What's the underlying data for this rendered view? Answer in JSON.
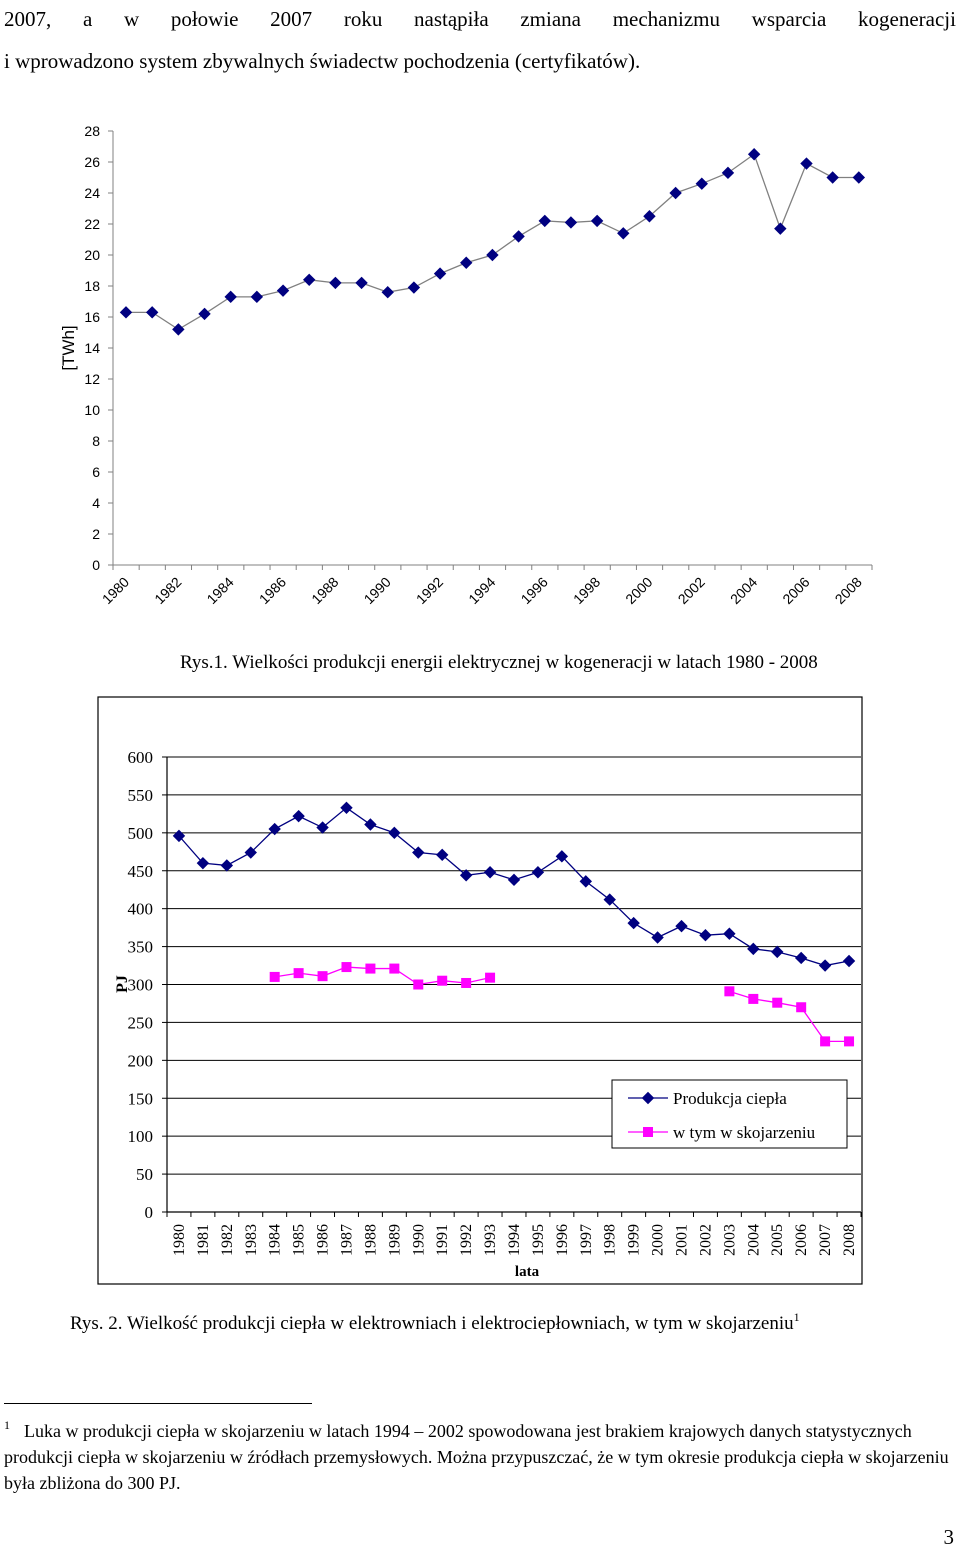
{
  "intro": {
    "line1_words": [
      "2007,",
      "a",
      "w",
      "połowie",
      "2007",
      "roku",
      "nastąpiła",
      "zmiana",
      "mechanizmu",
      "wsparcia",
      "kogeneracji"
    ],
    "line2": "i wprowadzono system zbywalnych świadectw pochodzenia (certyfikatów)."
  },
  "figure1": {
    "caption": "Rys.1. Wielkości produkcji energii elektrycznej w kogeneracji w latach 1980 - 2008",
    "chart_data": {
      "type": "line",
      "ylabel": "[TWh]",
      "xlabel": "",
      "ylim": [
        0,
        28
      ],
      "yticks": [
        "0",
        "2",
        "4",
        "6",
        "8",
        "10",
        "12",
        "14",
        "16",
        "18",
        "20",
        "22",
        "24",
        "26",
        "28"
      ],
      "xtick_labels": [
        "1980",
        "1982",
        "1984",
        "1986",
        "1988",
        "1990",
        "1992",
        "1994",
        "1996",
        "1998",
        "2000",
        "2002",
        "2004",
        "2006",
        "2008"
      ],
      "grid": false,
      "series": [
        {
          "name": "",
          "color": "#000080",
          "x": [
            1980,
            1981,
            1982,
            1983,
            1984,
            1985,
            1986,
            1987,
            1988,
            1989,
            1990,
            1991,
            1992,
            1993,
            1994,
            1995,
            1996,
            1997,
            1998,
            1999,
            2000,
            2001,
            2002,
            2003,
            2004,
            2005,
            2006,
            2007,
            2008
          ],
          "y": [
            16.3,
            16.3,
            15.2,
            16.2,
            17.3,
            17.3,
            17.7,
            18.4,
            18.2,
            18.2,
            17.6,
            17.9,
            18.8,
            19.5,
            20.0,
            21.2,
            22.2,
            22.1,
            22.2,
            21.4,
            22.5,
            24.0,
            24.6,
            25.3,
            26.5,
            21.7,
            25.9,
            25.0,
            25.0
          ]
        }
      ]
    }
  },
  "figure2": {
    "caption_text": "Rys. 2. Wielkość produkcji ciepła w elektrowniach i elektrociepłowniach, w tym w skojarzeniu",
    "caption_sup": "1",
    "chart_data": {
      "type": "line",
      "ylabel": "PJ",
      "xlabel": "lata",
      "ylim": [
        0,
        600
      ],
      "yticks": [
        "0",
        "50",
        "100",
        "150",
        "200",
        "250",
        "300",
        "350",
        "400",
        "450",
        "500",
        "550",
        "600"
      ],
      "categories": [
        "1980",
        "1981",
        "1982",
        "1983",
        "1984",
        "1985",
        "1986",
        "1987",
        "1988",
        "1989",
        "1990",
        "1991",
        "1992",
        "1993",
        "1994",
        "1995",
        "1996",
        "1997",
        "1998",
        "1999",
        "2000",
        "2001",
        "2002",
        "2003",
        "2004",
        "2005",
        "2006",
        "2007",
        "2008"
      ],
      "grid": true,
      "legend": "right",
      "series": [
        {
          "name": "Produkcja ciepła",
          "color": "#000080",
          "marker": "diamond",
          "values": [
            496,
            460,
            457,
            474,
            505,
            522,
            507,
            533,
            511,
            500,
            474,
            471,
            444,
            448,
            438,
            448,
            469,
            436,
            412,
            381,
            362,
            377,
            365,
            367,
            347,
            343,
            335,
            325,
            331
          ]
        },
        {
          "name": "w tym w skojarzeniu",
          "color": "#ff00ff",
          "marker": "square",
          "values": [
            null,
            null,
            null,
            null,
            310,
            315,
            311,
            323,
            321,
            321,
            300,
            305,
            302,
            309,
            null,
            null,
            null,
            null,
            null,
            null,
            null,
            null,
            null,
            291,
            281,
            276,
            270,
            225,
            225
          ]
        }
      ]
    }
  },
  "footnote": {
    "number": "1",
    "text": "Luka w produkcji ciepła w skojarzeniu w latach 1994 – 2002 spowodowana jest brakiem krajowych danych statystycznych produkcji ciepła w skojarzeniu w źródłach przemysłowych. Można przypuszczać, że w tym okresie produkcja ciepła w skojarzeniu była zbliżona do 300 PJ."
  },
  "page_number": "3"
}
